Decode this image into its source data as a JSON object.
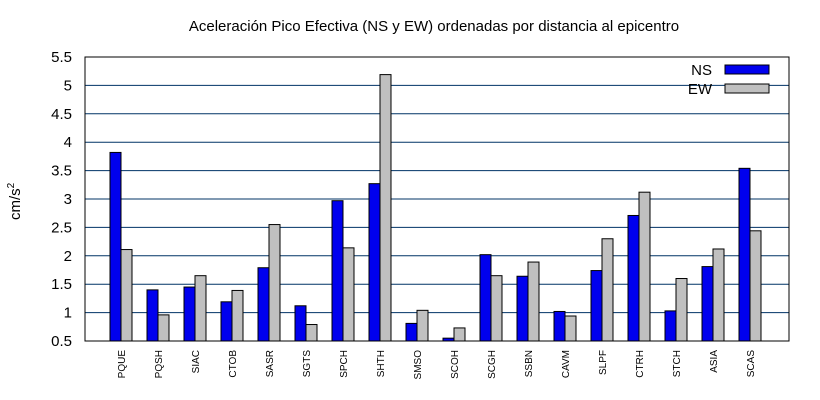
{
  "chart_data": {
    "type": "bar",
    "title": "Aceleración Pico Efectiva (NS y EW) ordenadas por distancia al epicentro",
    "xlabel": "",
    "ylabel": "cm/s",
    "ylabel_sup": "2",
    "ylim": [
      0.5,
      5.5
    ],
    "yticks": [
      0.5,
      1,
      1.5,
      2,
      2.5,
      3,
      3.5,
      4,
      4.5,
      5,
      5.5
    ],
    "grid": "horizontal",
    "legend_position": "top-right",
    "categories": [
      "PQUE",
      "PQSH",
      "SIAC",
      "CTOB",
      "SASR",
      "SGTS",
      "SPCH",
      "SHTH",
      "SMSO",
      "SCOH",
      "SCGH",
      "SSBN",
      "CAVM",
      "SLPF",
      "CTRH",
      "STCH",
      "ASIA",
      "SCAS"
    ],
    "series": [
      {
        "name": "NS",
        "color": "#0000ee",
        "values": [
          3.82,
          1.4,
          1.45,
          1.19,
          1.79,
          1.12,
          2.97,
          3.27,
          0.81,
          0.55,
          2.02,
          1.64,
          1.02,
          1.74,
          2.71,
          1.03,
          1.81,
          3.54
        ]
      },
      {
        "name": "EW",
        "color": "#c0c0c0",
        "values": [
          2.11,
          0.96,
          1.65,
          1.39,
          2.55,
          0.79,
          2.14,
          5.19,
          1.04,
          0.73,
          1.65,
          1.89,
          0.94,
          2.3,
          3.12,
          1.6,
          2.12,
          2.44
        ]
      }
    ]
  }
}
